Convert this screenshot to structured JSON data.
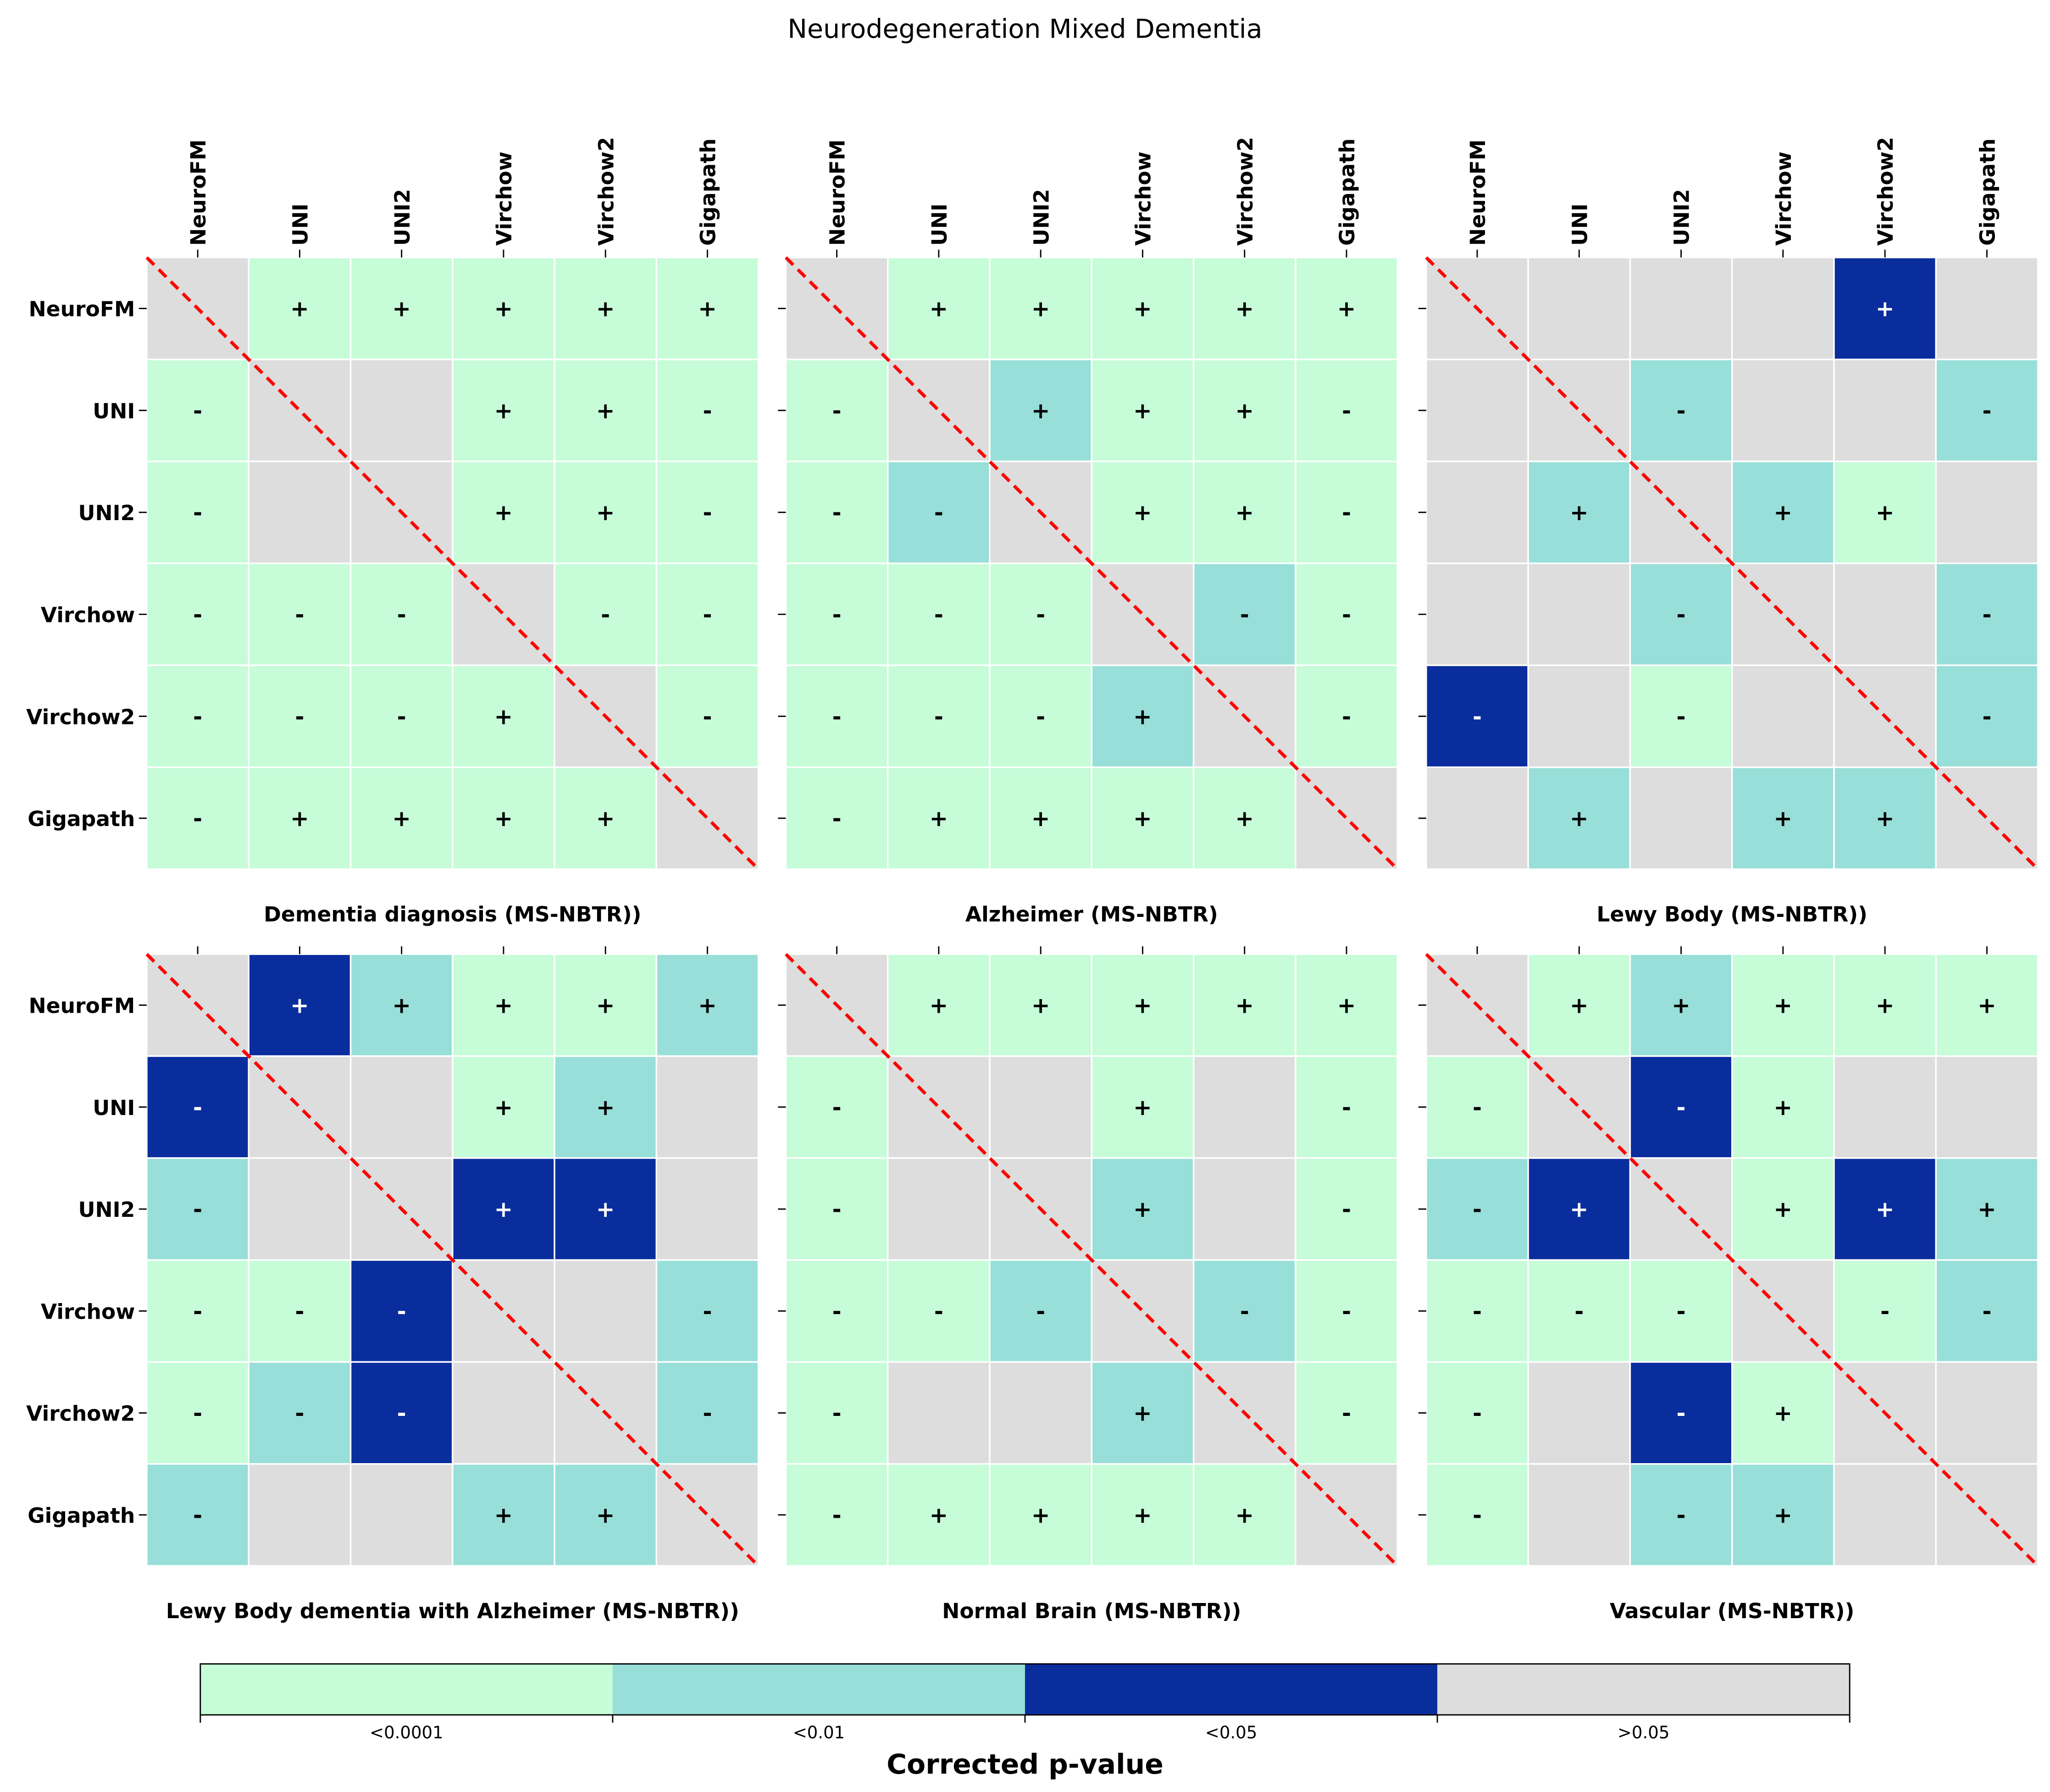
{
  "title": "Neurodegeneration Mixed Dementia",
  "colorbar": {
    "label": "Corrected p-value",
    "categories": [
      "<0.0001",
      "<0.01",
      "<0.05",
      ">0.05"
    ],
    "colors": [
      "#c6fcd8",
      "#97dfd8",
      "#0a2d9e",
      "#dcdddc"
    ]
  },
  "diagonal_color": "#ff0000",
  "chart_data": {
    "type": "heatmap",
    "models": [
      "NeuroFM",
      "UNI",
      "UNI2",
      "Virchow",
      "Virchow2",
      "Gigapath"
    ],
    "encoding": "cell = [p-value category index (0:<0.0001, 1:<0.01, 2:<0.05, 3:>0.05), sign]; diagonal cells are null",
    "panels": [
      {
        "title": "Dementia diagnosis (MS-NBTR))",
        "cells": [
          [
            null,
            [
              0,
              "+"
            ],
            [
              0,
              "+"
            ],
            [
              0,
              "+"
            ],
            [
              0,
              "+"
            ],
            [
              0,
              "+"
            ]
          ],
          [
            [
              0,
              "-"
            ],
            null,
            [
              3,
              ""
            ],
            [
              0,
              "+"
            ],
            [
              0,
              "+"
            ],
            [
              0,
              "-"
            ]
          ],
          [
            [
              0,
              "-"
            ],
            [
              3,
              ""
            ],
            null,
            [
              0,
              "+"
            ],
            [
              0,
              "+"
            ],
            [
              0,
              "-"
            ]
          ],
          [
            [
              0,
              "-"
            ],
            [
              0,
              "-"
            ],
            [
              0,
              "-"
            ],
            null,
            [
              0,
              "-"
            ],
            [
              0,
              "-"
            ]
          ],
          [
            [
              0,
              "-"
            ],
            [
              0,
              "-"
            ],
            [
              0,
              "-"
            ],
            [
              0,
              "+"
            ],
            null,
            [
              0,
              "-"
            ]
          ],
          [
            [
              0,
              "-"
            ],
            [
              0,
              "+"
            ],
            [
              0,
              "+"
            ],
            [
              0,
              "+"
            ],
            [
              0,
              "+"
            ],
            null
          ]
        ]
      },
      {
        "title": "Alzheimer (MS-NBTR)",
        "cells": [
          [
            null,
            [
              0,
              "+"
            ],
            [
              0,
              "+"
            ],
            [
              0,
              "+"
            ],
            [
              0,
              "+"
            ],
            [
              0,
              "+"
            ]
          ],
          [
            [
              0,
              "-"
            ],
            null,
            [
              1,
              "+"
            ],
            [
              0,
              "+"
            ],
            [
              0,
              "+"
            ],
            [
              0,
              "-"
            ]
          ],
          [
            [
              0,
              "-"
            ],
            [
              1,
              "-"
            ],
            null,
            [
              0,
              "+"
            ],
            [
              0,
              "+"
            ],
            [
              0,
              "-"
            ]
          ],
          [
            [
              0,
              "-"
            ],
            [
              0,
              "-"
            ],
            [
              0,
              "-"
            ],
            null,
            [
              1,
              "-"
            ],
            [
              0,
              "-"
            ]
          ],
          [
            [
              0,
              "-"
            ],
            [
              0,
              "-"
            ],
            [
              0,
              "-"
            ],
            [
              1,
              "+"
            ],
            null,
            [
              0,
              "-"
            ]
          ],
          [
            [
              0,
              "-"
            ],
            [
              0,
              "+"
            ],
            [
              0,
              "+"
            ],
            [
              0,
              "+"
            ],
            [
              0,
              "+"
            ],
            null
          ]
        ]
      },
      {
        "title": "Lewy Body (MS-NBTR))",
        "cells": [
          [
            null,
            [
              3,
              ""
            ],
            [
              3,
              ""
            ],
            [
              3,
              ""
            ],
            [
              2,
              "+"
            ],
            [
              3,
              ""
            ]
          ],
          [
            [
              3,
              ""
            ],
            null,
            [
              1,
              "-"
            ],
            [
              3,
              ""
            ],
            [
              3,
              ""
            ],
            [
              1,
              "-"
            ]
          ],
          [
            [
              3,
              ""
            ],
            [
              1,
              "+"
            ],
            null,
            [
              1,
              "+"
            ],
            [
              0,
              "+"
            ],
            [
              3,
              ""
            ]
          ],
          [
            [
              3,
              ""
            ],
            [
              3,
              ""
            ],
            [
              1,
              "-"
            ],
            null,
            [
              3,
              ""
            ],
            [
              1,
              "-"
            ]
          ],
          [
            [
              2,
              "-"
            ],
            [
              3,
              ""
            ],
            [
              0,
              "-"
            ],
            [
              3,
              ""
            ],
            null,
            [
              1,
              "-"
            ]
          ],
          [
            [
              3,
              ""
            ],
            [
              1,
              "+"
            ],
            [
              3,
              ""
            ],
            [
              1,
              "+"
            ],
            [
              1,
              "+"
            ],
            null
          ]
        ]
      },
      {
        "title": "Lewy Body dementia with Alzheimer (MS-NBTR))",
        "cells": [
          [
            null,
            [
              2,
              "+"
            ],
            [
              1,
              "+"
            ],
            [
              0,
              "+"
            ],
            [
              0,
              "+"
            ],
            [
              1,
              "+"
            ]
          ],
          [
            [
              2,
              "-"
            ],
            null,
            [
              3,
              ""
            ],
            [
              0,
              "+"
            ],
            [
              1,
              "+"
            ],
            [
              3,
              ""
            ]
          ],
          [
            [
              1,
              "-"
            ],
            [
              3,
              ""
            ],
            null,
            [
              2,
              "+"
            ],
            [
              2,
              "+"
            ],
            [
              3,
              ""
            ]
          ],
          [
            [
              0,
              "-"
            ],
            [
              0,
              "-"
            ],
            [
              2,
              "-"
            ],
            null,
            [
              3,
              ""
            ],
            [
              1,
              "-"
            ]
          ],
          [
            [
              0,
              "-"
            ],
            [
              1,
              "-"
            ],
            [
              2,
              "-"
            ],
            [
              3,
              ""
            ],
            null,
            [
              1,
              "-"
            ]
          ],
          [
            [
              1,
              "-"
            ],
            [
              3,
              ""
            ],
            [
              3,
              ""
            ],
            [
              1,
              "+"
            ],
            [
              1,
              "+"
            ],
            null
          ]
        ]
      },
      {
        "title": "Normal Brain (MS-NBTR))",
        "cells": [
          [
            null,
            [
              0,
              "+"
            ],
            [
              0,
              "+"
            ],
            [
              0,
              "+"
            ],
            [
              0,
              "+"
            ],
            [
              0,
              "+"
            ]
          ],
          [
            [
              0,
              "-"
            ],
            null,
            [
              3,
              ""
            ],
            [
              0,
              "+"
            ],
            [
              3,
              ""
            ],
            [
              0,
              "-"
            ]
          ],
          [
            [
              0,
              "-"
            ],
            [
              3,
              ""
            ],
            null,
            [
              1,
              "+"
            ],
            [
              3,
              ""
            ],
            [
              0,
              "-"
            ]
          ],
          [
            [
              0,
              "-"
            ],
            [
              0,
              "-"
            ],
            [
              1,
              "-"
            ],
            null,
            [
              1,
              "-"
            ],
            [
              0,
              "-"
            ]
          ],
          [
            [
              0,
              "-"
            ],
            [
              3,
              ""
            ],
            [
              3,
              ""
            ],
            [
              1,
              "+"
            ],
            null,
            [
              0,
              "-"
            ]
          ],
          [
            [
              0,
              "-"
            ],
            [
              0,
              "+"
            ],
            [
              0,
              "+"
            ],
            [
              0,
              "+"
            ],
            [
              0,
              "+"
            ],
            null
          ]
        ]
      },
      {
        "title": "Vascular (MS-NBTR))",
        "cells": [
          [
            null,
            [
              0,
              "+"
            ],
            [
              1,
              "+"
            ],
            [
              0,
              "+"
            ],
            [
              0,
              "+"
            ],
            [
              0,
              "+"
            ]
          ],
          [
            [
              0,
              "-"
            ],
            null,
            [
              2,
              "-"
            ],
            [
              0,
              "+"
            ],
            [
              3,
              ""
            ],
            [
              3,
              ""
            ]
          ],
          [
            [
              1,
              "-"
            ],
            [
              2,
              "+"
            ],
            null,
            [
              0,
              "+"
            ],
            [
              2,
              "+"
            ],
            [
              1,
              "+"
            ]
          ],
          [
            [
              0,
              "-"
            ],
            [
              0,
              "-"
            ],
            [
              0,
              "-"
            ],
            null,
            [
              0,
              "-"
            ],
            [
              1,
              "-"
            ]
          ],
          [
            [
              0,
              "-"
            ],
            [
              3,
              ""
            ],
            [
              2,
              "-"
            ],
            [
              0,
              "+"
            ],
            null,
            [
              3,
              ""
            ]
          ],
          [
            [
              0,
              "-"
            ],
            [
              3,
              ""
            ],
            [
              1,
              "-"
            ],
            [
              1,
              "+"
            ],
            [
              3,
              ""
            ],
            null
          ]
        ]
      }
    ]
  }
}
